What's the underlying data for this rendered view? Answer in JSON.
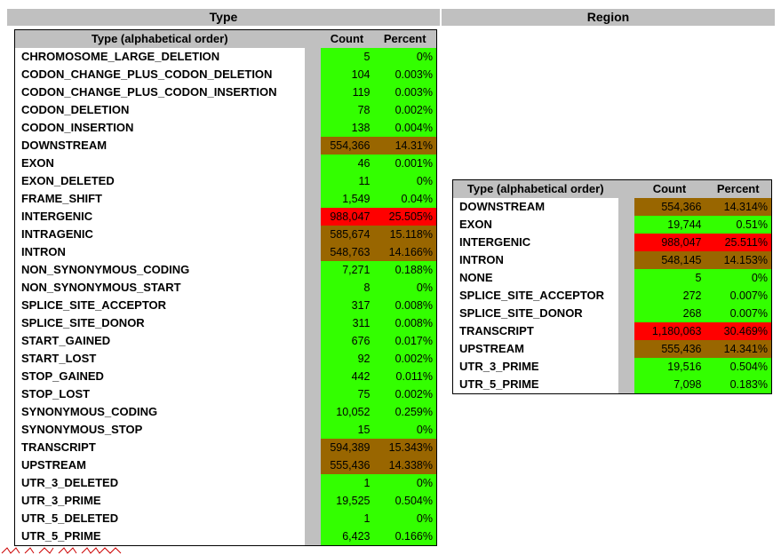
{
  "headers": {
    "type": "Type",
    "region": "Region"
  },
  "type_table": {
    "columns": [
      "Type (alphabetical order)",
      "Count",
      "Percent"
    ],
    "rows": [
      {
        "name": "CHROMOSOME_LARGE_DELETION",
        "count": "5",
        "percent": "0%",
        "level": "low"
      },
      {
        "name": "CODON_CHANGE_PLUS_CODON_DELETION",
        "count": "104",
        "percent": "0.003%",
        "level": "low"
      },
      {
        "name": "CODON_CHANGE_PLUS_CODON_INSERTION",
        "count": "119",
        "percent": "0.003%",
        "level": "low"
      },
      {
        "name": "CODON_DELETION",
        "count": "78",
        "percent": "0.002%",
        "level": "low"
      },
      {
        "name": "CODON_INSERTION",
        "count": "138",
        "percent": "0.004%",
        "level": "low"
      },
      {
        "name": "DOWNSTREAM",
        "count": "554,366",
        "percent": "14.31%",
        "level": "mid"
      },
      {
        "name": "EXON",
        "count": "46",
        "percent": "0.001%",
        "level": "low"
      },
      {
        "name": "EXON_DELETED",
        "count": "11",
        "percent": "0%",
        "level": "low"
      },
      {
        "name": "FRAME_SHIFT",
        "count": "1,549",
        "percent": "0.04%",
        "level": "low"
      },
      {
        "name": "INTERGENIC",
        "count": "988,047",
        "percent": "25.505%",
        "level": "high"
      },
      {
        "name": "INTRAGENIC",
        "count": "585,674",
        "percent": "15.118%",
        "level": "mid"
      },
      {
        "name": "INTRON",
        "count": "548,763",
        "percent": "14.166%",
        "level": "mid"
      },
      {
        "name": "NON_SYNONYMOUS_CODING",
        "count": "7,271",
        "percent": "0.188%",
        "level": "low"
      },
      {
        "name": "NON_SYNONYMOUS_START",
        "count": "8",
        "percent": "0%",
        "level": "low"
      },
      {
        "name": "SPLICE_SITE_ACCEPTOR",
        "count": "317",
        "percent": "0.008%",
        "level": "low"
      },
      {
        "name": "SPLICE_SITE_DONOR",
        "count": "311",
        "percent": "0.008%",
        "level": "low"
      },
      {
        "name": "START_GAINED",
        "count": "676",
        "percent": "0.017%",
        "level": "low"
      },
      {
        "name": "START_LOST",
        "count": "92",
        "percent": "0.002%",
        "level": "low"
      },
      {
        "name": "STOP_GAINED",
        "count": "442",
        "percent": "0.011%",
        "level": "low"
      },
      {
        "name": "STOP_LOST",
        "count": "75",
        "percent": "0.002%",
        "level": "low"
      },
      {
        "name": "SYNONYMOUS_CODING",
        "count": "10,052",
        "percent": "0.259%",
        "level": "low"
      },
      {
        "name": "SYNONYMOUS_STOP",
        "count": "15",
        "percent": "0%",
        "level": "low"
      },
      {
        "name": "TRANSCRIPT",
        "count": "594,389",
        "percent": "15.343%",
        "level": "mid"
      },
      {
        "name": "UPSTREAM",
        "count": "555,436",
        "percent": "14.338%",
        "level": "mid"
      },
      {
        "name": "UTR_3_DELETED",
        "count": "1",
        "percent": "0%",
        "level": "low"
      },
      {
        "name": "UTR_3_PRIME",
        "count": "19,525",
        "percent": "0.504%",
        "level": "low"
      },
      {
        "name": "UTR_5_DELETED",
        "count": "1",
        "percent": "0%",
        "level": "low"
      },
      {
        "name": "UTR_5_PRIME",
        "count": "6,423",
        "percent": "0.166%",
        "level": "low"
      }
    ]
  },
  "region_table": {
    "columns": [
      "Type (alphabetical order)",
      "Count",
      "Percent"
    ],
    "rows": [
      {
        "name": "DOWNSTREAM",
        "count": "554,366",
        "percent": "14.314%",
        "level": "mid"
      },
      {
        "name": "EXON",
        "count": "19,744",
        "percent": "0.51%",
        "level": "low"
      },
      {
        "name": "INTERGENIC",
        "count": "988,047",
        "percent": "25.511%",
        "level": "high"
      },
      {
        "name": "INTRON",
        "count": "548,145",
        "percent": "14.153%",
        "level": "mid"
      },
      {
        "name": "NONE",
        "count": "5",
        "percent": "0%",
        "level": "low"
      },
      {
        "name": "SPLICE_SITE_ACCEPTOR",
        "count": "272",
        "percent": "0.007%",
        "level": "low"
      },
      {
        "name": "SPLICE_SITE_DONOR",
        "count": "268",
        "percent": "0.007%",
        "level": "low"
      },
      {
        "name": "TRANSCRIPT",
        "count": "1,180,063",
        "percent": "30.469%",
        "level": "high"
      },
      {
        "name": "UPSTREAM",
        "count": "555,436",
        "percent": "14.341%",
        "level": "mid"
      },
      {
        "name": "UTR_3_PRIME",
        "count": "19,516",
        "percent": "0.504%",
        "level": "low"
      },
      {
        "name": "UTR_5_PRIME",
        "count": "7,098",
        "percent": "0.183%",
        "level": "low"
      }
    ]
  },
  "colors": {
    "low": "#33ff00",
    "mid": "#996600",
    "high": "#ff0000",
    "header": "#c0c0c0"
  }
}
